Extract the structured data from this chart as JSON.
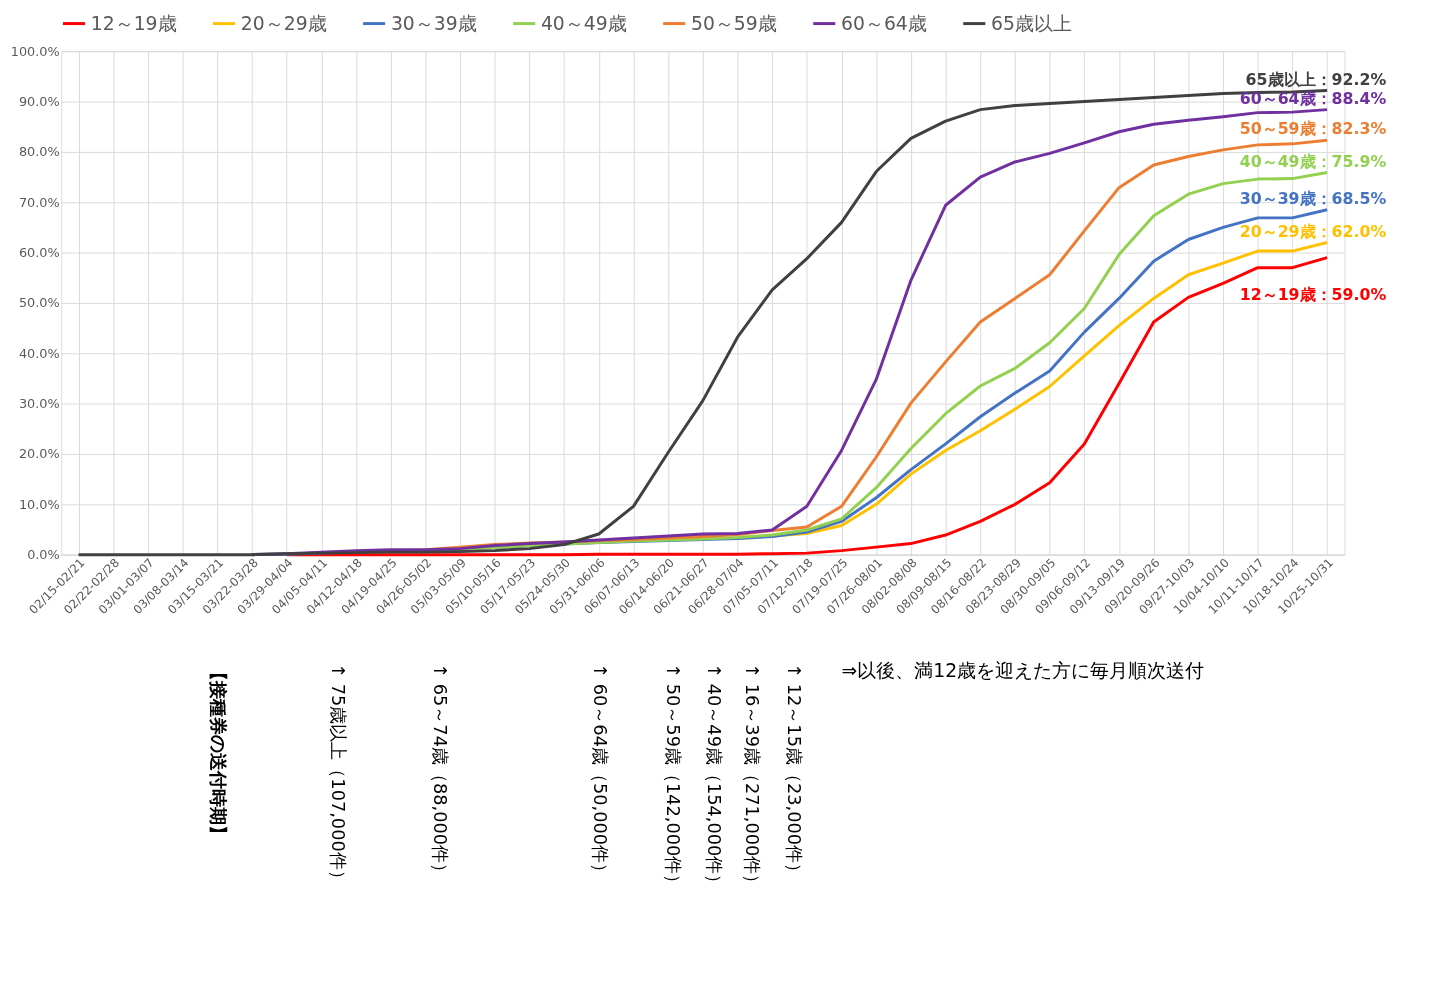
{
  "chart_data": {
    "type": "line",
    "categories": [
      "02/15-02/21",
      "02/22-02/28",
      "03/01-03/07",
      "03/08-03/14",
      "03/15-03/21",
      "03/22-03/28",
      "03/29-04/04",
      "04/05-04/11",
      "04/12-04/18",
      "04/19-04/25",
      "04/26-05/02",
      "05/03-05/09",
      "05/10-05/16",
      "05/17-05/23",
      "05/24-05/30",
      "05/31-06/06",
      "06/07-06/13",
      "06/14-06/20",
      "06/21-06/27",
      "06/28-07/04",
      "07/05-07/11",
      "07/12-07/18",
      "07/19-07/25",
      "07/26-08/01",
      "08/02-08/08",
      "08/09-08/15",
      "08/16-08/22",
      "08/23-08/29",
      "08/30-09/05",
      "09/06-09/12",
      "09/13-09/19",
      "09/20-09/26",
      "09/27-10/03",
      "10/04-10/10",
      "10/11-10/17",
      "10/18-10/24",
      "10/25-10/31"
    ],
    "series": [
      {
        "name": "12～19歳",
        "color": "#ff0000",
        "values": [
          null,
          null,
          null,
          null,
          null,
          null,
          0,
          0,
          0,
          0,
          0,
          0,
          0,
          0,
          0,
          0.1,
          0.1,
          0.1,
          0.1,
          0.1,
          0.2,
          0.3,
          0.8,
          1.5,
          2.2,
          3.9,
          6.6,
          10.0,
          14.3,
          22.0,
          34.0,
          46.2,
          51.1,
          53.9,
          57.0,
          57.0,
          59.0
        ]
      },
      {
        "name": "20～29歳",
        "color": "#ffc000",
        "values": [
          null,
          null,
          null,
          null,
          null,
          null,
          null,
          null,
          null,
          null,
          null,
          null,
          null,
          null,
          null,
          null,
          null,
          null,
          null,
          3.4,
          3.7,
          4.2,
          5.8,
          10.0,
          16.0,
          20.7,
          24.6,
          28.9,
          33.4,
          39.5,
          45.5,
          50.9,
          55.6,
          57.9,
          60.3,
          60.3,
          62.0
        ]
      },
      {
        "name": "30～39歳",
        "color": "#4472c4",
        "values": [
          null,
          null,
          null,
          null,
          null,
          0,
          0.1,
          0.3,
          0.5,
          0.8,
          0.9,
          1.0,
          1.4,
          1.8,
          2.1,
          2.4,
          2.6,
          2.8,
          3.0,
          3.2,
          3.6,
          4.5,
          6.6,
          11.3,
          16.9,
          22.0,
          27.4,
          32.1,
          36.5,
          44.2,
          50.9,
          58.3,
          62.6,
          65.0,
          66.9,
          66.9,
          68.5
        ]
      },
      {
        "name": "40～49歳",
        "color": "#92d050",
        "values": [
          null,
          null,
          null,
          null,
          null,
          null,
          null,
          null,
          null,
          null,
          null,
          1.0,
          1.4,
          1.8,
          2.1,
          2.4,
          2.7,
          2.9,
          3.1,
          3.4,
          3.9,
          4.9,
          7.1,
          13.3,
          21.1,
          28.0,
          33.5,
          37.0,
          42.1,
          48.9,
          59.6,
          67.3,
          71.6,
          73.7,
          74.6,
          74.7,
          75.9
        ]
      },
      {
        "name": "50～59歳",
        "color": "#ed7d31",
        "values": [
          null,
          null,
          null,
          null,
          null,
          null,
          null,
          null,
          null,
          null,
          1.0,
          1.5,
          2.0,
          2.3,
          2.5,
          2.8,
          3.0,
          3.3,
          3.6,
          4.0,
          4.8,
          5.5,
          9.6,
          19.4,
          30.1,
          38.3,
          46.2,
          50.9,
          55.6,
          64.3,
          72.9,
          77.4,
          79.1,
          80.4,
          81.4,
          81.6,
          82.3
        ]
      },
      {
        "name": "60～64歳",
        "color": "#7030a0",
        "values": [
          null,
          null,
          null,
          null,
          null,
          0,
          0.2,
          0.5,
          0.8,
          1.0,
          1.0,
          1.2,
          1.8,
          2.2,
          2.5,
          2.9,
          3.3,
          3.7,
          4.1,
          4.2,
          4.9,
          9.6,
          20.7,
          34.8,
          54.5,
          69.4,
          75.0,
          78.0,
          79.7,
          81.8,
          84.0,
          85.5,
          86.3,
          87.0,
          87.8,
          87.9,
          88.4
        ]
      },
      {
        "name": "65歳以上",
        "color": "#404040",
        "values": [
          0,
          0,
          0,
          0,
          0,
          0,
          0.2,
          0.3,
          0.4,
          0.5,
          0.5,
          0.6,
          0.8,
          1.2,
          2.0,
          4.1,
          9.6,
          20.3,
          30.6,
          43.2,
          52.6,
          58.8,
          66.0,
          76.1,
          82.7,
          86.1,
          88.4,
          89.2,
          89.6,
          90.0,
          90.4,
          90.8,
          91.2,
          91.6,
          91.8,
          91.9,
          92.2
        ]
      }
    ],
    "ylim": [
      0,
      100
    ],
    "yticks": [
      {
        "value": 0,
        "label": "0.0%"
      },
      {
        "value": 10,
        "label": "10.0%"
      },
      {
        "value": 20,
        "label": "20.0%"
      },
      {
        "value": 30,
        "label": "30.0%"
      },
      {
        "value": 40,
        "label": "40.0%"
      },
      {
        "value": 50,
        "label": "50.0%"
      },
      {
        "value": 60,
        "label": "60.0%"
      },
      {
        "value": 70,
        "label": "70.0%"
      },
      {
        "value": 80,
        "label": "80.0%"
      },
      {
        "value": 90,
        "label": "90.0%"
      },
      {
        "value": 100,
        "label": "100.0%"
      }
    ],
    "grid": true,
    "legend": "top",
    "annotations": [
      {
        "text": "12～19歳：59.0%",
        "x": "10/25-10/31",
        "y": 59.0
      },
      {
        "text": "20～29歳：62.0%",
        "x": "10/25-10/31",
        "y": 62.0
      },
      {
        "text": "30～39歳：68.5%",
        "x": "10/25-10/31",
        "y": 68.5
      },
      {
        "text": "40～49歳：75.9%",
        "x": "10/25-10/31",
        "y": 75.9
      },
      {
        "text": "50～59歳：82.3%",
        "x": "10/25-10/31",
        "y": 82.3
      },
      {
        "text": "60～64歳：88.4%",
        "x": "10/25-10/31",
        "y": 88.4
      },
      {
        "text": "65歳以上：92.2%",
        "x": "10/25-10/31",
        "y": 92.2
      },
      "【接種券の送付時期】",
      "↑ 75歳以上（107,000件）",
      "↑ 65～74歳（88,000件）",
      "↑ 60～64歳（50,000件）",
      "↑ 50～59歳（142,000件）",
      "↑ 40～49歳（154,000件）",
      "↑ 16～39歳（271,000件）",
      "↑ 12～15歳（23,000件）",
      "⇒以後、満12歳を迎えた方に毎月順次送付"
    ]
  }
}
